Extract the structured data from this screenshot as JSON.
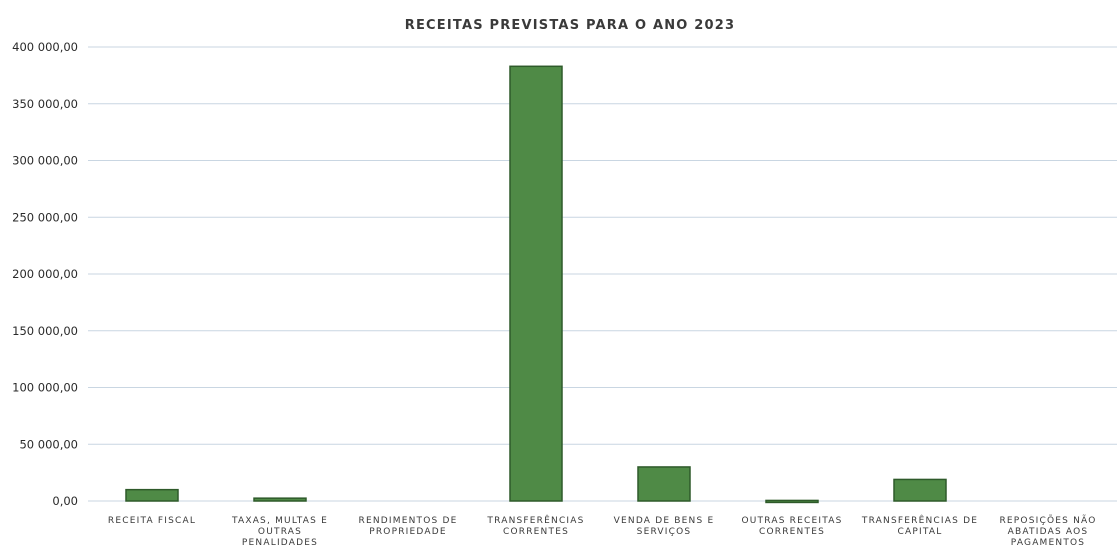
{
  "chart_data": {
    "type": "bar",
    "title": "RECEITAS PREVISTAS PARA O ANO 2023",
    "xlabel": "",
    "ylabel": "",
    "ylim": [
      0,
      400000
    ],
    "yticks": [
      "0,00",
      "50 000,00",
      "100 000,00",
      "150 000,00",
      "200 000,00",
      "250 000,00",
      "300 000,00",
      "350 000,00",
      "400 000,00"
    ],
    "categories": [
      [
        "RECEITA FISCAL"
      ],
      [
        "TAXAS, MULTAS E",
        "OUTRAS",
        "PENALIDADES"
      ],
      [
        "RENDIMENTOS DE",
        "PROPRIEDADE"
      ],
      [
        "TRANSFERÊNCIAS",
        "CORRENTES"
      ],
      [
        "VENDA DE BENS E",
        "SERVIÇOS"
      ],
      [
        "OUTRAS RECEITAS",
        "CORRENTES"
      ],
      [
        "TRANSFERÊNCIAS DE",
        "CAPITAL"
      ],
      [
        "REPOSIÇÕES NÃO",
        "ABATIDAS AOS",
        "PAGAMENTOS"
      ]
    ],
    "values": [
      10000,
      2500,
      0,
      383000,
      30000,
      500,
      19000,
      0
    ],
    "colors": {
      "bar": "#4f8a46",
      "bar_edge": "#2e5a2a",
      "grid": "#c9d6e2"
    },
    "grid": true,
    "legend": "none"
  }
}
